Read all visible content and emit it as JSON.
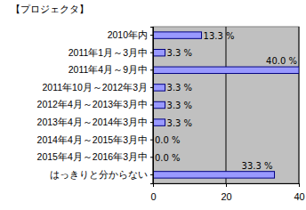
{
  "chart_data": {
    "type": "bar",
    "title": "【プロジェクタ】",
    "orientation": "horizontal",
    "categories": [
      "2010年内",
      "2011年1月～3月中",
      "2011年4月～9月中",
      "2011年10月～2012年3月",
      "2012年4月～2013年3月中",
      "2013年4月～2014年3月中",
      "2014年4月～2015年3月中",
      "2015年4月～2016年3月中",
      "はっきりと分からない"
    ],
    "values": [
      13.3,
      3.3,
      40.0,
      3.3,
      3.3,
      3.3,
      0.0,
      0.0,
      33.3
    ],
    "value_labels": [
      "13.3 %",
      "3.3 %",
      "40.0 %",
      "3.3 %",
      "3.3 %",
      "3.3 %",
      "0.0 %",
      "0.0 %",
      "33.3 %"
    ],
    "data_labels": true,
    "color": "#9999ff",
    "xlim": [
      0,
      40
    ],
    "xticks": [
      0,
      20,
      40
    ],
    "grid": true
  }
}
